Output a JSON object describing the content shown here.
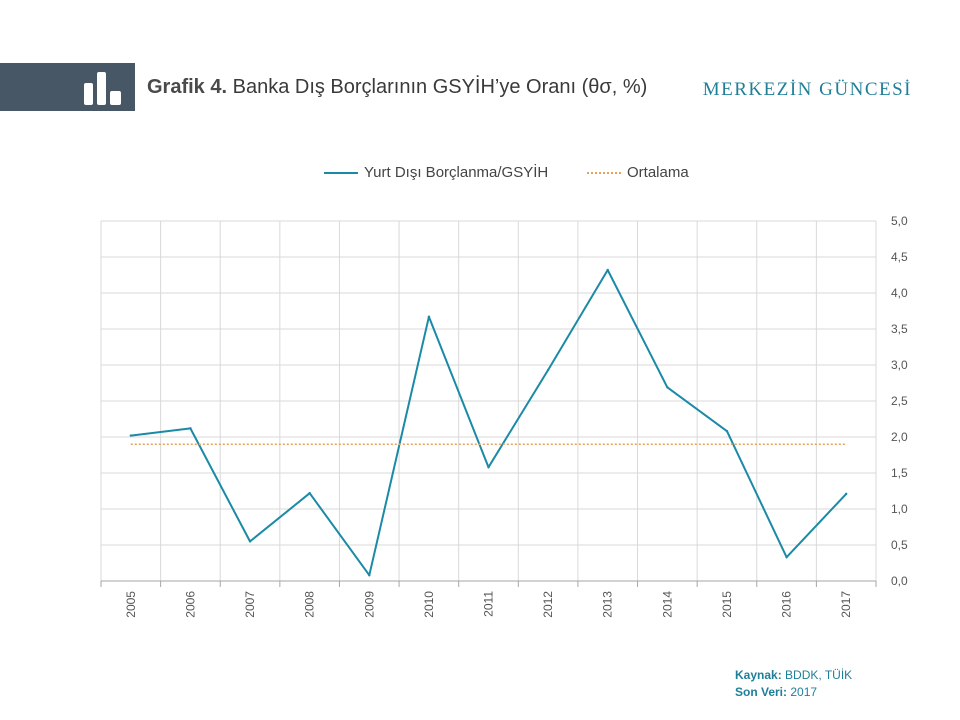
{
  "header": {
    "title_prefix": "Grafik 4.",
    "title_text": "Banka Dış Borçlarının GSYİH’ye Oranı (θσ, %)",
    "brand": "MERKEZİN GÜNCESİ"
  },
  "icons": {
    "header_icon": "bar-chart-icon"
  },
  "colors": {
    "series": "#1a8aa6",
    "average": "#e6a15a",
    "band": "#485766",
    "brand": "#1f7f99",
    "grid": "#d9d9d9"
  },
  "chart_data": {
    "type": "line",
    "title": "",
    "x": [
      "2005",
      "2006",
      "2007",
      "2008",
      "2009",
      "2010",
      "2011",
      "2012",
      "2013",
      "2014",
      "2015",
      "2016",
      "2017"
    ],
    "series": [
      {
        "name": "Yurt Dışı Borçlanma/GSYİH",
        "style": "solid",
        "values": [
          2.02,
          2.12,
          0.55,
          1.22,
          0.08,
          3.67,
          1.58,
          2.93,
          4.32,
          2.69,
          2.08,
          0.33,
          1.21
        ]
      },
      {
        "name": "Ortalama",
        "style": "dotted",
        "values": [
          1.9,
          1.9,
          1.9,
          1.9,
          1.9,
          1.9,
          1.9,
          1.9,
          1.9,
          1.9,
          1.9,
          1.9,
          1.9
        ]
      }
    ],
    "ylim": [
      0,
      5
    ],
    "yticks": [
      "0,0",
      "0,5",
      "1,0",
      "1,5",
      "2,0",
      "2,5",
      "3,0",
      "3,5",
      "4,0",
      "4,5",
      "5,0"
    ],
    "y_axis_side": "right",
    "grid": true,
    "legend_position": "top"
  },
  "footer": {
    "source_label": "Kaynak:",
    "source_value": "BDDK, TÜİK",
    "last_label": "Son Veri:",
    "last_value": "2017"
  }
}
